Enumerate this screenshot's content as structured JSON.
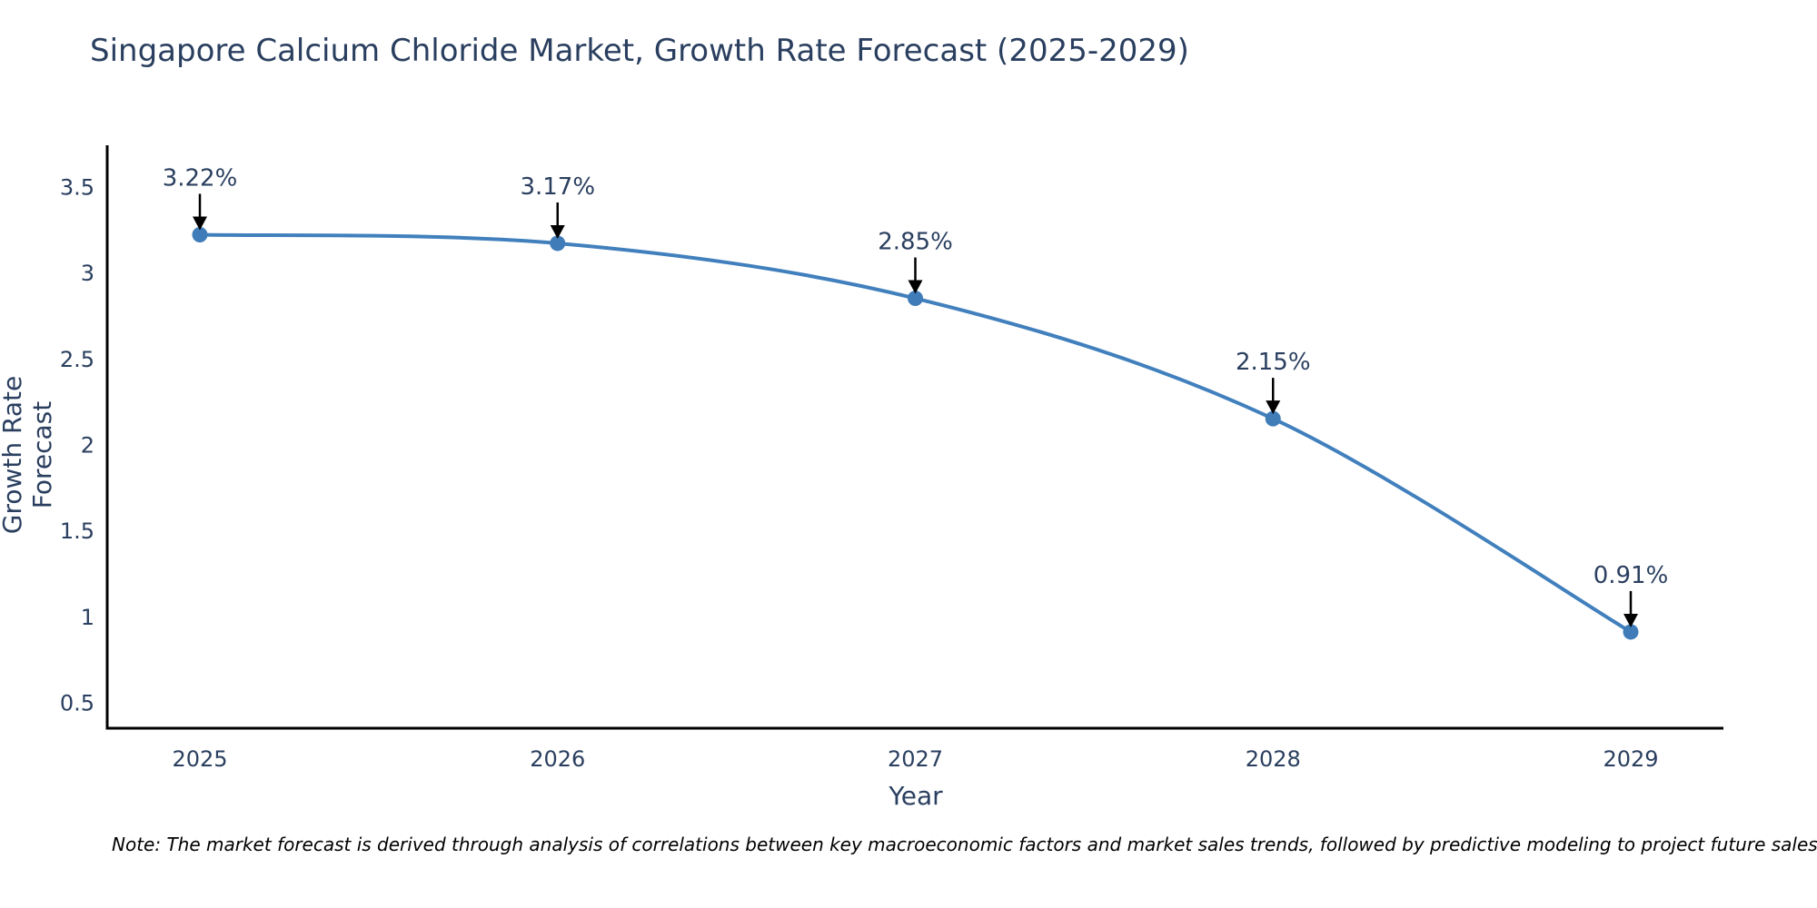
{
  "title": "Singapore Calcium Chloride Market, Growth Rate Forecast (2025-2029)",
  "footnote": "Note: The market forecast is derived through analysis of correlations between key macroeconomic factors and market sales trends, followed by predictive modeling to project future sales",
  "colors": {
    "line": "#4180bd",
    "marker": "#3f7cb8",
    "text": "#2a3f5f",
    "axis": "#000000",
    "arrow": "#000000",
    "background": "#ffffff"
  },
  "chart_data": {
    "type": "line",
    "title": "Singapore Calcium Chloride Market, Growth Rate Forecast (2025-2029)",
    "xlabel": "Year",
    "ylabel": "Growth Rate Forecast",
    "x": [
      2025,
      2026,
      2027,
      2028,
      2029
    ],
    "values": [
      3.22,
      3.17,
      2.85,
      2.15,
      0.91
    ],
    "point_labels": [
      "3.22%",
      "3.17%",
      "2.85%",
      "2.15%",
      "0.91%"
    ],
    "xticks": [
      "2025",
      "2026",
      "2027",
      "2028",
      "2029"
    ],
    "yticks": [
      0.5,
      1,
      1.5,
      2,
      2.5,
      3,
      3.5
    ],
    "ylim": [
      0.35,
      3.74
    ],
    "line_shape": "spline",
    "grid": false,
    "legend": "none",
    "markers": true,
    "annotations_arrow": true
  }
}
